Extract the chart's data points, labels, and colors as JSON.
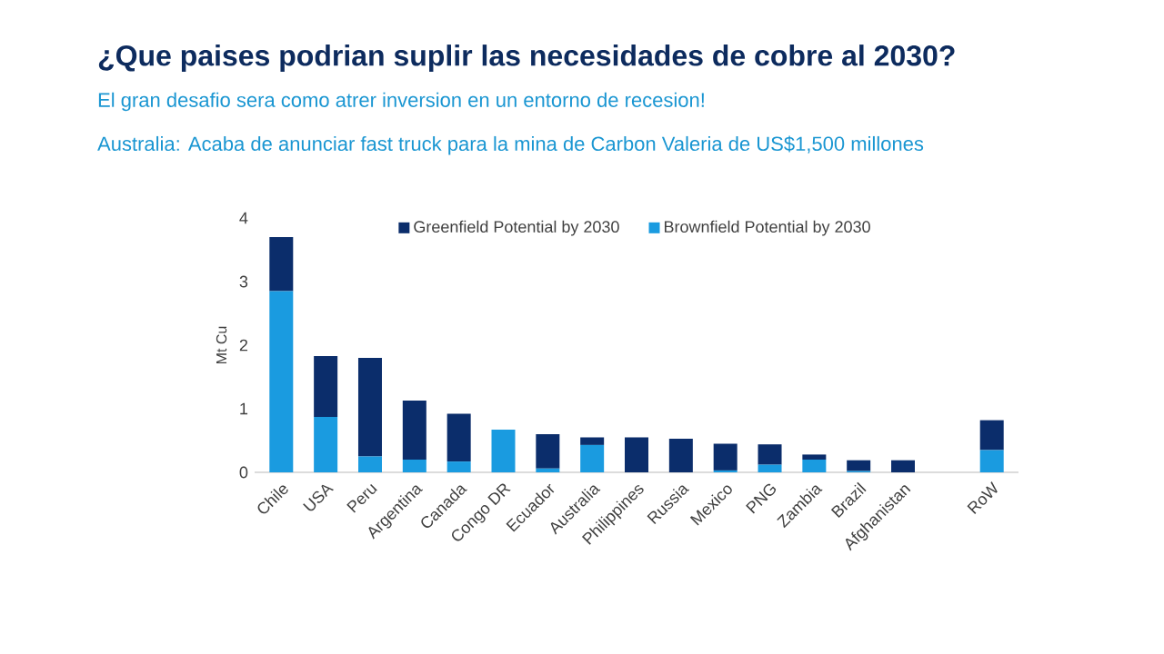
{
  "chart_data": {
    "type": "bar",
    "title": "¿Que paises podrian suplir las necesidades de cobre al 2030?",
    "subtitle": "El gran desafio sera como atrer inversion en un entorno de recesion!",
    "annotations": [
      "Australia: Acaba de anunciar fast truck para la mina de Carbon Valeria de US$1,500 millones"
    ],
    "ylabel": "Mt Cu",
    "categories": [
      "Chile",
      "USA",
      "Peru",
      "Argentina",
      "Canada",
      "Congo DR",
      "Ecuador",
      "Australia",
      "Philippines",
      "Russia",
      "Mexico",
      "PNG",
      "Zambia",
      "Brazil",
      "Afghanistan",
      null,
      "RoW"
    ],
    "stacked": true,
    "series": [
      {
        "name": "Brownfield Potential by 2030",
        "color": "#1a9be0",
        "values": [
          2.85,
          0.87,
          0.25,
          0.2,
          0.17,
          0.67,
          0.06,
          0.43,
          0,
          0,
          0.03,
          0.12,
          0.2,
          0.02,
          0,
          null,
          0.35
        ]
      },
      {
        "name": "Greenfield Potential by 2030",
        "color": "#0b2d6b",
        "values": [
          0.85,
          0.96,
          1.55,
          0.93,
          0.75,
          0,
          0.54,
          0.12,
          0.55,
          0.53,
          0.42,
          0.32,
          0.08,
          0.17,
          0.19,
          null,
          0.47
        ]
      }
    ],
    "ylim": [
      0,
      4
    ],
    "yticks": [
      0,
      1,
      2,
      3,
      4
    ],
    "legend": "top"
  }
}
